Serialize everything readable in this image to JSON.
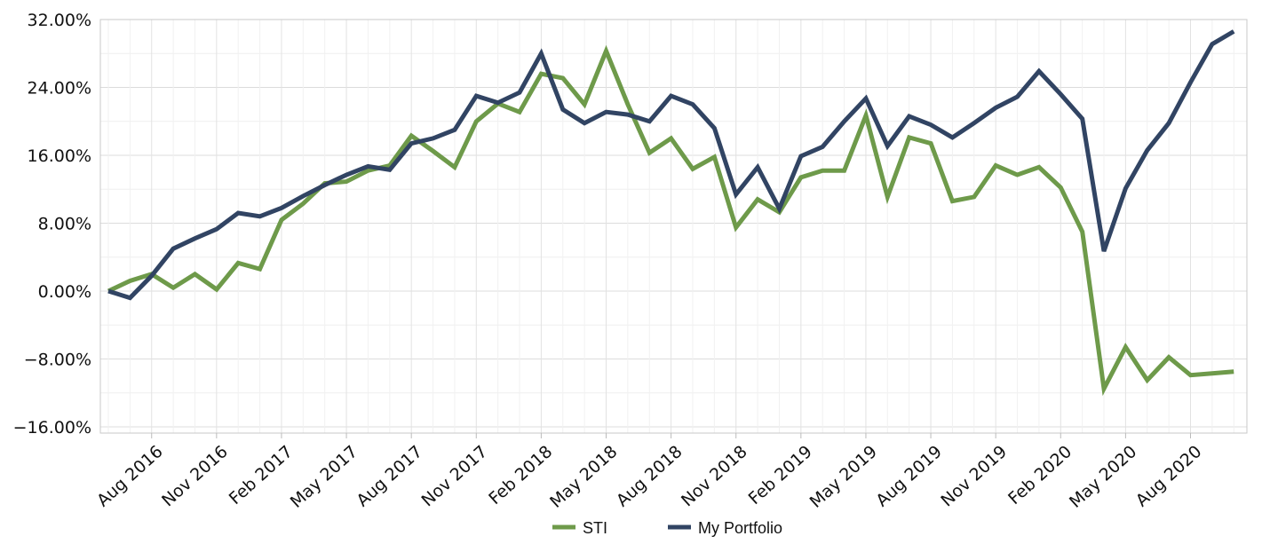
{
  "chart_data": {
    "type": "line",
    "title": "",
    "xlabel": "",
    "ylabel": "",
    "x": [
      "Jun 2016",
      "Jul 2016",
      "Aug 2016",
      "Sep 2016",
      "Oct 2016",
      "Nov 2016",
      "Dec 2016",
      "Jan 2017",
      "Feb 2017",
      "Mar 2017",
      "Apr 2017",
      "May 2017",
      "Jun 2017",
      "Jul 2017",
      "Aug 2017",
      "Sep 2017",
      "Oct 2017",
      "Nov 2017",
      "Dec 2017",
      "Jan 2018",
      "Feb 2018",
      "Mar 2018",
      "Apr 2018",
      "May 2018",
      "Jun 2018",
      "Jul 2018",
      "Aug 2018",
      "Sep 2018",
      "Oct 2018",
      "Nov 2018",
      "Dec 2018",
      "Jan 2019",
      "Feb 2019",
      "Mar 2019",
      "Apr 2019",
      "May 2019",
      "Jun 2019",
      "Jul 2019",
      "Aug 2019",
      "Sep 2019",
      "Oct 2019",
      "Nov 2019",
      "Dec 2019",
      "Jan 2020",
      "Feb 2020",
      "Mar 2020",
      "Apr 2020",
      "May 2020",
      "Jun 2020",
      "Jul 2020",
      "Aug 2020",
      "Sep 2020",
      "Oct 2020"
    ],
    "x_tick_labels": [
      "Aug 2016",
      "Nov 2016",
      "Feb 2017",
      "May 2017",
      "Aug 2017",
      "Nov 2017",
      "Feb 2018",
      "May 2018",
      "Aug 2018",
      "Nov 2018",
      "Feb 2019",
      "May 2019",
      "Aug 2019",
      "Nov 2019",
      "Feb 2020",
      "May 2020",
      "Aug 2020"
    ],
    "y_tick_labels": [
      "32.00%",
      "24.00%",
      "16.00%",
      "8.00%",
      "0.00%",
      "−8.00%",
      "−16.00%"
    ],
    "ylim": [
      -16,
      32
    ],
    "y_unit": "%",
    "grid": true,
    "legend_position": "bottom-center",
    "series": [
      {
        "name": "STI",
        "color": "#6e9a4a",
        "values": [
          0.0,
          1.2,
          2.0,
          0.4,
          2.0,
          0.2,
          3.3,
          2.6,
          8.4,
          10.3,
          12.7,
          12.9,
          14.2,
          14.8,
          18.3,
          16.5,
          14.6,
          20.0,
          22.1,
          21.1,
          25.6,
          25.1,
          22.0,
          28.3,
          22.0,
          16.3,
          18.0,
          14.4,
          15.8,
          7.5,
          10.8,
          9.3,
          13.4,
          14.2,
          14.2,
          20.7,
          11.1,
          18.1,
          17.4,
          10.6,
          11.1,
          14.8,
          13.7,
          14.6,
          12.2,
          7.0,
          -11.5,
          -6.6,
          -10.5,
          -7.8,
          -9.9,
          -9.7,
          -9.5
        ]
      },
      {
        "name": "My Portfolio",
        "color": "#314463",
        "values": [
          0.0,
          -0.8,
          1.8,
          5.0,
          6.2,
          7.3,
          9.2,
          8.8,
          9.8,
          11.2,
          12.5,
          13.7,
          14.7,
          14.3,
          17.4,
          18.0,
          19.0,
          23.0,
          22.2,
          23.4,
          28.0,
          21.4,
          19.8,
          21.1,
          20.8,
          20.0,
          23.0,
          22.0,
          19.2,
          11.4,
          14.6,
          9.7,
          15.9,
          17.0,
          20.0,
          22.7,
          17.1,
          20.6,
          19.6,
          18.1,
          19.8,
          21.6,
          22.9,
          25.9,
          23.2,
          20.3,
          4.7,
          12.1,
          16.6,
          19.8,
          24.6,
          29.1,
          30.6
        ]
      }
    ]
  }
}
